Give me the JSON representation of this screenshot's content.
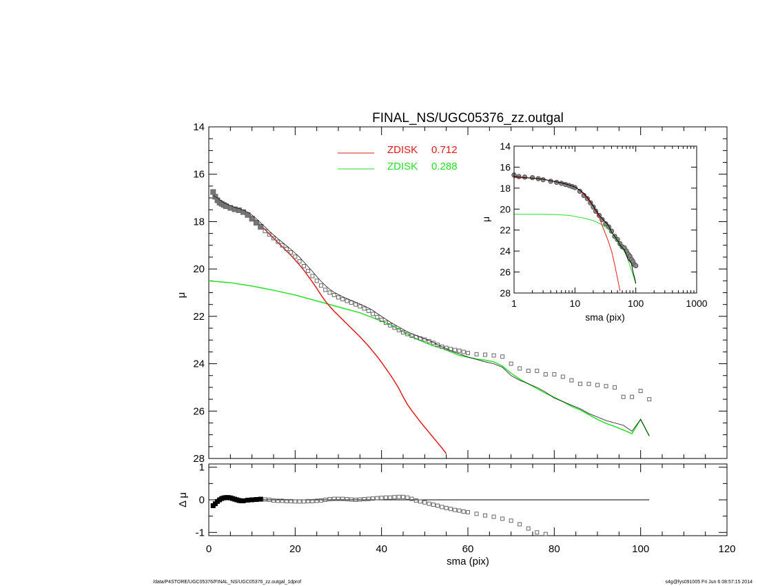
{
  "page": {
    "footer_left": "/data/P4STORE/UGC05376/FINAL_NS/UGC05376_zz.outgal_1dprof",
    "footer_right": "s4g@fys091005  Fri Jun  6 08:57:15 2014"
  },
  "chart_data": [
    {
      "id": "main",
      "type": "scatter",
      "title": "FINAL_NS/UGC05376_zz.outgal",
      "xlabel": "",
      "ylabel": "μ",
      "xlim": [
        0,
        120
      ],
      "ylim": [
        28,
        14
      ],
      "y_inverted": true,
      "xticks": [],
      "yticks": [
        "14",
        "16",
        "18",
        "20",
        "22",
        "24",
        "26",
        "28"
      ],
      "legend": {
        "placement": "top-center",
        "entries": [
          {
            "name": "ZDISK",
            "value": "0.712",
            "color": "#e01a1a"
          },
          {
            "name": "ZDISK",
            "value": "0.288",
            "color": "#22e022"
          }
        ]
      },
      "colors": {
        "data": "#555555",
        "model_total": "#000000",
        "comp1": "#e01a1a",
        "comp2": "#22e022"
      },
      "series": [
        {
          "name": "observed",
          "kind": "markers",
          "x": [
            1.0,
            1.5,
            2.0,
            2.5,
            3.0,
            3.5,
            4.0,
            5.0,
            6.0,
            7.0,
            8.0,
            9.0,
            10.0,
            11.0,
            12.0,
            13.0,
            14.0,
            15.0,
            16.0,
            17.0,
            18.0,
            19.0,
            20.0,
            21.0,
            22.0,
            23.0,
            24.0,
            25.0,
            26.0,
            27.0,
            28.0,
            29.0,
            30.0,
            31.0,
            32.0,
            33.0,
            34.0,
            35.0,
            36.0,
            37.0,
            38.0,
            39.0,
            40.0,
            41.0,
            42.0,
            43.0,
            44.0,
            45.0,
            46.0,
            47.0,
            48.0,
            49.0,
            50.0,
            51.0,
            52.0,
            53.0,
            54.0,
            55.0,
            56.0,
            57.0,
            58.0,
            59.0,
            60.0,
            62.0,
            64.0,
            66.0,
            68.0,
            70.0,
            72.0,
            74.0,
            76.0,
            78.0,
            80.0,
            82.0,
            84.0,
            86.0,
            88.0,
            90.0,
            92.0,
            94.0,
            96.0,
            98.0,
            100.0,
            102.0
          ],
          "y": [
            16.75,
            16.95,
            17.1,
            17.2,
            17.25,
            17.3,
            17.35,
            17.42,
            17.48,
            17.52,
            17.6,
            17.72,
            17.88,
            18.05,
            18.22,
            18.4,
            18.55,
            18.7,
            18.85,
            19.0,
            19.15,
            19.3,
            19.48,
            19.68,
            19.88,
            20.08,
            20.3,
            20.5,
            20.7,
            20.88,
            21.0,
            21.1,
            21.2,
            21.28,
            21.35,
            21.42,
            21.5,
            21.58,
            21.67,
            21.77,
            21.9,
            22.03,
            22.15,
            22.27,
            22.38,
            22.48,
            22.58,
            22.68,
            22.75,
            22.82,
            22.88,
            22.93,
            22.98,
            23.05,
            23.12,
            23.2,
            23.28,
            23.33,
            23.38,
            23.42,
            23.45,
            23.5,
            23.55,
            23.6,
            23.62,
            23.65,
            23.7,
            24.0,
            24.2,
            24.3,
            24.3,
            24.45,
            24.45,
            24.55,
            24.7,
            24.85,
            24.85,
            24.9,
            24.95,
            25.0,
            25.4,
            25.4,
            25.15,
            25.5
          ]
        },
        {
          "name": "model",
          "kind": "line",
          "x": [
            1,
            2,
            3,
            4,
            5,
            6,
            7,
            8,
            9,
            10,
            11,
            12,
            13,
            14,
            15,
            16,
            17,
            18,
            19,
            20,
            21,
            22,
            23,
            24,
            25,
            26,
            27,
            28,
            29,
            30,
            31,
            32,
            33,
            34,
            35,
            36,
            37,
            38,
            39,
            40,
            41,
            42,
            43,
            44,
            45,
            46,
            47,
            48,
            49,
            50,
            51,
            52,
            53,
            54,
            55,
            56,
            57,
            58,
            59,
            60,
            62,
            64,
            66,
            68,
            70,
            72,
            74,
            76,
            78,
            80,
            82,
            84,
            86,
            88,
            90,
            92,
            94,
            96,
            98,
            100,
            102
          ],
          "y": [
            16.9,
            17.0,
            17.15,
            17.25,
            17.32,
            17.4,
            17.45,
            17.52,
            17.6,
            17.72,
            17.88,
            18.05,
            18.22,
            18.4,
            18.56,
            18.72,
            18.87,
            19.02,
            19.17,
            19.33,
            19.5,
            19.7,
            19.9,
            20.1,
            20.32,
            20.52,
            20.7,
            20.86,
            20.98,
            21.08,
            21.17,
            21.25,
            21.33,
            21.4,
            21.48,
            21.56,
            21.65,
            21.75,
            21.88,
            22.0,
            22.12,
            22.24,
            22.35,
            22.45,
            22.55,
            22.65,
            22.73,
            22.8,
            22.88,
            22.95,
            23.02,
            23.1,
            23.2,
            23.28,
            23.36,
            23.45,
            23.52,
            23.58,
            23.65,
            23.72,
            23.82,
            23.92,
            24.0,
            24.15,
            24.5,
            24.7,
            24.85,
            25.0,
            25.2,
            25.45,
            25.6,
            25.75,
            25.9,
            26.1,
            26.25,
            26.4,
            26.5,
            26.6,
            26.85,
            26.35,
            27.05
          ]
        },
        {
          "name": "component 1",
          "kind": "line",
          "color": "#e01a1a",
          "x": [
            1,
            2,
            3,
            4,
            5,
            6,
            7,
            8,
            9,
            10,
            11,
            12,
            13,
            14,
            15,
            16,
            17,
            18,
            19,
            20,
            21,
            22,
            23,
            24,
            25,
            26,
            27,
            28,
            29,
            30,
            31,
            32,
            33,
            34,
            35,
            36,
            37,
            38,
            39,
            40,
            41,
            42,
            43,
            44,
            45,
            46,
            47,
            48,
            49,
            50,
            51,
            52,
            53,
            54,
            55
          ],
          "y": [
            16.95,
            17.05,
            17.17,
            17.27,
            17.35,
            17.42,
            17.47,
            17.55,
            17.65,
            17.8,
            17.97,
            18.15,
            18.33,
            18.52,
            18.7,
            18.88,
            19.06,
            19.24,
            19.42,
            19.62,
            19.83,
            20.05,
            20.3,
            20.55,
            20.82,
            21.1,
            21.36,
            21.58,
            21.78,
            21.96,
            22.14,
            22.32,
            22.5,
            22.68,
            22.86,
            23.06,
            23.26,
            23.48,
            23.7,
            23.94,
            24.2,
            24.46,
            24.74,
            25.04,
            25.4,
            25.72,
            25.98,
            26.22,
            26.46,
            26.68,
            26.9,
            27.12,
            27.34,
            27.56,
            27.8
          ]
        },
        {
          "name": "component 2",
          "kind": "line",
          "color": "#22e022",
          "x": [
            0,
            5,
            10,
            15,
            20,
            25,
            30,
            35,
            40,
            42,
            44,
            46,
            48,
            50,
            52,
            54,
            56,
            58,
            60,
            62,
            64,
            66,
            68,
            70,
            72,
            74,
            76,
            78,
            80,
            82,
            84,
            86,
            88,
            90,
            92,
            94,
            96,
            98,
            100,
            102
          ],
          "y": [
            20.5,
            20.58,
            20.72,
            20.9,
            21.1,
            21.35,
            21.6,
            21.85,
            22.2,
            22.35,
            22.55,
            22.75,
            22.95,
            23.1,
            23.25,
            23.35,
            23.5,
            23.65,
            23.72,
            23.8,
            23.85,
            23.92,
            24.1,
            24.4,
            24.65,
            24.85,
            25.05,
            25.25,
            25.42,
            25.6,
            25.8,
            25.95,
            26.15,
            26.35,
            26.52,
            26.65,
            26.8,
            26.95,
            26.35,
            27.05
          ]
        }
      ]
    },
    {
      "id": "residual",
      "type": "scatter",
      "xlabel": "sma (pix)",
      "ylabel": "Δ μ",
      "xlim": [
        0,
        120
      ],
      "ylim": [
        -1.1,
        1.1
      ],
      "xticks": [
        "0",
        "20",
        "40",
        "60",
        "80",
        "100",
        "120"
      ],
      "yticks": [
        "1",
        "0",
        "-1"
      ],
      "zero_line_end": 102,
      "series": [
        {
          "name": "Δ μ",
          "kind": "markers",
          "x": [
            1.0,
            1.5,
            2.0,
            2.5,
            3.0,
            3.5,
            4.0,
            4.5,
            5.0,
            5.5,
            6.0,
            6.5,
            7.0,
            7.5,
            8.0,
            9.0,
            10.0,
            11.0,
            12.0,
            13.0,
            14.0,
            15.0,
            16.0,
            17.0,
            18.0,
            19.0,
            20.0,
            21.0,
            22.0,
            23.0,
            24.0,
            25.0,
            26.0,
            27.0,
            28.0,
            29.0,
            30.0,
            31.0,
            32.0,
            33.0,
            34.0,
            35.0,
            36.0,
            37.0,
            38.0,
            39.0,
            40.0,
            41.0,
            42.0,
            43.0,
            44.0,
            45.0,
            46.0,
            47.0,
            48.0,
            49.0,
            50.0,
            51.0,
            52.0,
            53.0,
            54.0,
            55.0,
            56.0,
            57.0,
            58.0,
            59.0,
            60.0,
            62.0,
            64.0,
            66.0,
            68.0,
            70.0,
            72.0,
            74.0,
            76.0,
            78.0
          ],
          "y": [
            -0.18,
            -0.12,
            -0.05,
            0.0,
            0.04,
            0.06,
            0.07,
            0.07,
            0.06,
            0.04,
            0.02,
            0.0,
            -0.02,
            -0.03,
            -0.03,
            -0.01,
            0.0,
            0.01,
            0.02,
            0.01,
            0.0,
            -0.02,
            -0.03,
            -0.03,
            -0.04,
            -0.04,
            -0.05,
            -0.05,
            -0.05,
            -0.04,
            -0.04,
            -0.03,
            -0.02,
            0.0,
            0.02,
            0.03,
            0.03,
            0.03,
            0.02,
            0.01,
            0.0,
            0.01,
            0.02,
            0.03,
            0.04,
            0.05,
            0.06,
            0.07,
            0.07,
            0.08,
            0.09,
            0.09,
            0.07,
            0.03,
            -0.02,
            -0.05,
            -0.08,
            -0.12,
            -0.15,
            -0.18,
            -0.22,
            -0.25,
            -0.28,
            -0.31,
            -0.33,
            -0.36,
            -0.38,
            -0.43,
            -0.48,
            -0.52,
            -0.58,
            -0.64,
            -0.75,
            -0.88,
            -1.0,
            -1.05
          ]
        }
      ]
    },
    {
      "id": "inset",
      "type": "line",
      "xlabel": "sma (pix)",
      "ylabel": "μ",
      "xscale": "log",
      "xlim": [
        1,
        1000
      ],
      "ylim": [
        28,
        14
      ],
      "y_inverted": true,
      "xticks": [
        "1",
        "10",
        "100",
        "1000"
      ],
      "yticks": [
        "14",
        "16",
        "18",
        "20",
        "22",
        "24",
        "26",
        "28"
      ],
      "series": [
        {
          "name": "observed",
          "kind": "markers",
          "x": [
            1.0,
            1.2,
            1.5,
            2.0,
            2.5,
            3.0,
            4.0,
            5.0,
            6.0,
            7.0,
            8.0,
            9.0,
            10.0,
            12.0,
            14.0,
            16.0,
            18.0,
            20.0,
            22.0,
            25.0,
            28.0,
            32.0,
            36.0,
            40.0,
            45.0,
            50.0,
            55.0,
            60.0,
            65.0,
            70.0,
            75.0,
            80.0,
            85.0,
            90.0,
            95.0,
            100.0
          ],
          "y": [
            16.75,
            16.9,
            16.95,
            17.0,
            17.1,
            17.2,
            17.35,
            17.45,
            17.55,
            17.65,
            17.75,
            17.85,
            17.95,
            18.3,
            18.7,
            19.0,
            19.4,
            19.8,
            20.2,
            20.6,
            21.0,
            21.4,
            21.7,
            22.1,
            22.6,
            22.9,
            23.3,
            23.6,
            23.7,
            24.0,
            24.3,
            24.5,
            24.8,
            25.0,
            25.3,
            25.4
          ]
        },
        {
          "name": "model",
          "kind": "line",
          "color": "#000000",
          "x": [
            1,
            1.5,
            2,
            3,
            4,
            5,
            6,
            7,
            8,
            10,
            12,
            14,
            16,
            18,
            20,
            25,
            30,
            35,
            40,
            45,
            50,
            55,
            60,
            65,
            70,
            75,
            80,
            85,
            90,
            95,
            100
          ],
          "y": [
            16.9,
            17.0,
            17.05,
            17.15,
            17.3,
            17.4,
            17.5,
            17.6,
            17.7,
            17.9,
            18.2,
            18.5,
            18.9,
            19.3,
            19.7,
            20.6,
            21.1,
            21.5,
            22.2,
            22.6,
            23.0,
            23.4,
            23.7,
            23.9,
            24.4,
            24.8,
            25.0,
            25.2,
            26.0,
            26.5,
            27.1
          ]
        },
        {
          "name": "component 1",
          "kind": "line",
          "color": "#e01a1a",
          "x": [
            1,
            1.5,
            2,
            3,
            4,
            5,
            6,
            8,
            10,
            12,
            14,
            16,
            18,
            20,
            25,
            30,
            35,
            40,
            45,
            50,
            55
          ],
          "y": [
            17.0,
            17.02,
            17.05,
            17.15,
            17.3,
            17.4,
            17.5,
            17.7,
            17.9,
            18.2,
            18.6,
            19.0,
            19.4,
            19.7,
            20.8,
            22.0,
            23.0,
            24.0,
            25.3,
            26.6,
            27.8
          ]
        },
        {
          "name": "component 2",
          "kind": "line",
          "color": "#22e022",
          "x": [
            1,
            2,
            3,
            5,
            8,
            10,
            15,
            20,
            25,
            30,
            40,
            50,
            60,
            70,
            80,
            90,
            100
          ],
          "y": [
            20.5,
            20.5,
            20.5,
            20.52,
            20.6,
            20.7,
            20.9,
            21.1,
            21.35,
            21.6,
            22.2,
            23.1,
            23.7,
            24.4,
            25.4,
            26.3,
            27.05
          ]
        }
      ]
    }
  ]
}
